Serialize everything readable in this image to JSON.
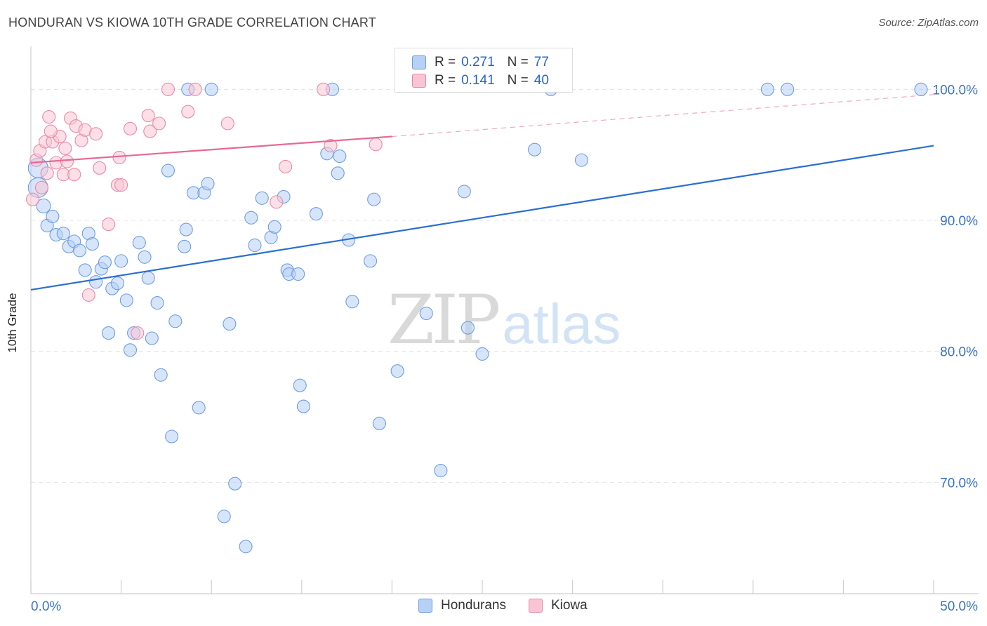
{
  "header": {
    "title": "HONDURAN VS KIOWA 10TH GRADE CORRELATION CHART",
    "source": "Source: ZipAtlas.com"
  },
  "legend": {
    "rows": [
      {
        "r_label": "R =",
        "r_value": "0.271",
        "n_label": "N =",
        "n_value": "77"
      },
      {
        "r_label": "R =",
        "r_value": "0.141",
        "n_label": "N =",
        "n_value": "40"
      }
    ],
    "bottom": [
      "Hondurans",
      "Kiowa"
    ]
  },
  "watermark": {
    "zip": "ZIP",
    "atlas": "atlas"
  },
  "colors": {
    "blue_fill": "#b7d0f5",
    "blue_stroke": "#6f9de0",
    "blue_line": "#2a6fd0",
    "pink_fill": "#f9c4d4",
    "pink_stroke": "#e88aa8",
    "pink_line": "#e66a93",
    "tick_label": "#3a73c8",
    "grid": "#e4e4e4"
  },
  "chart_data": {
    "type": "scatter",
    "title": "HONDURAN VS KIOWA 10TH GRADE CORRELATION CHART",
    "xlabel": "",
    "ylabel": "10th Grade",
    "xlim": [
      0,
      50
    ],
    "ylim": [
      61.5,
      103.5
    ],
    "x_tick_labels": [
      "0.0%",
      "50.0%"
    ],
    "y_ticks": [
      70,
      80,
      90,
      100
    ],
    "y_tick_labels": [
      "70.0%",
      "80.0%",
      "90.0%",
      "100.0%"
    ],
    "grid": true,
    "series": [
      {
        "name": "Hondurans",
        "R": 0.271,
        "N": 77,
        "trend": {
          "x0": 0,
          "y0": 84.7,
          "x1": 50,
          "y1": 95.7
        },
        "points": [
          [
            0.4,
            94.0,
            14
          ],
          [
            0.4,
            92.5,
            14
          ],
          [
            0.7,
            91.1,
            10
          ],
          [
            0.9,
            89.6,
            9
          ],
          [
            1.2,
            90.3,
            9
          ],
          [
            1.4,
            88.9,
            9
          ],
          [
            1.8,
            89.0,
            9
          ],
          [
            2.1,
            88.0,
            9
          ],
          [
            2.4,
            88.4,
            9
          ],
          [
            2.7,
            87.7,
            9
          ],
          [
            3.0,
            86.2,
            9
          ],
          [
            3.2,
            89.0,
            9
          ],
          [
            3.4,
            88.2,
            9
          ],
          [
            3.6,
            85.3,
            9
          ],
          [
            3.9,
            86.3,
            9
          ],
          [
            4.1,
            86.8,
            9
          ],
          [
            4.3,
            81.4,
            9
          ],
          [
            4.5,
            84.8,
            9
          ],
          [
            4.8,
            85.2,
            9
          ],
          [
            5.0,
            86.9,
            9
          ],
          [
            5.3,
            83.9,
            9
          ],
          [
            5.5,
            80.1,
            9
          ],
          [
            5.7,
            81.4,
            9
          ],
          [
            6.0,
            88.3,
            9
          ],
          [
            6.3,
            87.2,
            9
          ],
          [
            6.5,
            85.6,
            9
          ],
          [
            6.7,
            81.0,
            9
          ],
          [
            7.0,
            83.7,
            9
          ],
          [
            7.2,
            78.2,
            9
          ],
          [
            7.6,
            93.8,
            9
          ],
          [
            7.8,
            73.5,
            9
          ],
          [
            8.0,
            82.3,
            9
          ],
          [
            8.5,
            88.0,
            9
          ],
          [
            8.6,
            89.3,
            9
          ],
          [
            8.7,
            100.0,
            9
          ],
          [
            9.0,
            92.1,
            9
          ],
          [
            9.3,
            75.7,
            9
          ],
          [
            9.6,
            92.1,
            9
          ],
          [
            9.8,
            92.8,
            9
          ],
          [
            10.0,
            100.0,
            9
          ],
          [
            10.7,
            67.4,
            9
          ],
          [
            11.0,
            82.1,
            9
          ],
          [
            11.3,
            69.9,
            9
          ],
          [
            11.9,
            65.1,
            9
          ],
          [
            12.2,
            90.2,
            9
          ],
          [
            12.4,
            88.1,
            9
          ],
          [
            12.8,
            91.7,
            9
          ],
          [
            13.3,
            88.7,
            9
          ],
          [
            13.5,
            89.5,
            9
          ],
          [
            14.0,
            91.8,
            9
          ],
          [
            14.2,
            86.2,
            9
          ],
          [
            14.3,
            85.9,
            9
          ],
          [
            14.8,
            85.9,
            9
          ],
          [
            14.9,
            77.4,
            9
          ],
          [
            15.1,
            75.8,
            9
          ],
          [
            15.8,
            90.5,
            9
          ],
          [
            16.4,
            95.1,
            9
          ],
          [
            16.7,
            100.0,
            9
          ],
          [
            17.0,
            93.6,
            9
          ],
          [
            17.1,
            94.9,
            9
          ],
          [
            17.6,
            88.5,
            9
          ],
          [
            17.8,
            83.8,
            9
          ],
          [
            18.8,
            86.9,
            9
          ],
          [
            19.0,
            91.6,
            9
          ],
          [
            19.3,
            74.5,
            9
          ],
          [
            20.3,
            78.5,
            9
          ],
          [
            21.9,
            82.9,
            9
          ],
          [
            22.7,
            70.9,
            9
          ],
          [
            24.0,
            92.2,
            9
          ],
          [
            24.2,
            81.8,
            9
          ],
          [
            25.0,
            79.8,
            9
          ],
          [
            27.9,
            95.4,
            9
          ],
          [
            28.8,
            100.0,
            9
          ],
          [
            30.5,
            94.6,
            9
          ],
          [
            40.8,
            100.0,
            9
          ],
          [
            41.9,
            100.0,
            9
          ],
          [
            49.3,
            100.0,
            9
          ]
        ]
      },
      {
        "name": "Kiowa",
        "R": 0.141,
        "N": 40,
        "trend": {
          "x0": 0,
          "y0": 94.4,
          "x1": 20,
          "y1": 96.4
        },
        "trend_ext": {
          "x0": 20,
          "y0": 96.4,
          "x1": 50,
          "y1": 99.6
        },
        "points": [
          [
            0.1,
            91.6,
            9
          ],
          [
            0.3,
            94.6,
            9
          ],
          [
            0.5,
            95.3,
            9
          ],
          [
            0.8,
            96.0,
            9
          ],
          [
            1.0,
            97.9,
            9
          ],
          [
            1.2,
            96.0,
            9
          ],
          [
            1.4,
            94.4,
            9
          ],
          [
            1.6,
            96.4,
            9
          ],
          [
            1.8,
            93.5,
            9
          ],
          [
            2.0,
            94.5,
            9
          ],
          [
            2.2,
            97.8,
            9
          ],
          [
            2.4,
            93.5,
            9
          ],
          [
            2.5,
            97.2,
            9
          ],
          [
            2.8,
            96.1,
            9
          ],
          [
            3.0,
            96.9,
            9
          ],
          [
            3.2,
            84.3,
            9
          ],
          [
            3.6,
            96.6,
            9
          ],
          [
            3.8,
            94.0,
            9
          ],
          [
            4.3,
            89.7,
            9
          ],
          [
            4.8,
            92.7,
            9
          ],
          [
            4.9,
            94.8,
            9
          ],
          [
            5.0,
            92.7,
            9
          ],
          [
            5.5,
            97.0,
            9
          ],
          [
            5.9,
            81.4,
            9
          ],
          [
            6.5,
            98.0,
            9
          ],
          [
            6.6,
            96.8,
            9
          ],
          [
            7.1,
            97.4,
            9
          ],
          [
            7.6,
            100.0,
            9
          ],
          [
            8.7,
            98.3,
            9
          ],
          [
            9.1,
            100.0,
            9
          ],
          [
            10.9,
            97.4,
            9
          ],
          [
            13.6,
            91.4,
            9
          ],
          [
            14.1,
            94.1,
            9
          ],
          [
            16.2,
            100.0,
            9
          ],
          [
            16.6,
            95.7,
            9
          ],
          [
            19.1,
            95.8,
            9
          ],
          [
            0.6,
            92.5,
            9
          ],
          [
            1.1,
            96.8,
            9
          ],
          [
            1.9,
            95.5,
            9
          ],
          [
            0.9,
            93.6,
            9
          ]
        ]
      }
    ]
  }
}
